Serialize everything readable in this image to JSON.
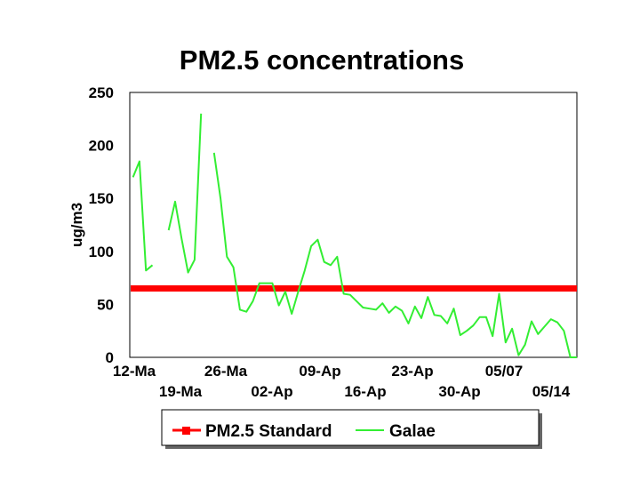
{
  "chart_data": {
    "type": "line",
    "title": "PM2.5 concentrations",
    "xlabel": "",
    "ylabel": "ug/m3",
    "ylim": [
      0,
      250
    ],
    "yticks": [
      0,
      50,
      100,
      150,
      200,
      250
    ],
    "x_tick_labels_row1": [
      "12-Ma",
      "26-Ma",
      "09-Ap",
      "23-Ap",
      "05/07"
    ],
    "x_tick_labels_row2": [
      "19-Ma",
      "02-Ap",
      "16-Ap",
      "30-Ap",
      "05/14"
    ],
    "x_range_days": [
      0,
      69
    ],
    "grid": false,
    "legend_position": "bottom",
    "series": [
      {
        "name": "PM2.5 Standard",
        "color": "#ff0000",
        "kind": "constant",
        "value": 65
      },
      {
        "name": "Galae",
        "color": "#33ee33",
        "kind": "line",
        "segments": [
          {
            "x": [
              0.5,
              1.5,
              2.5,
              3.5
            ],
            "y": [
              170,
              185,
              82,
              87
            ]
          },
          {
            "x": [
              6,
              7,
              8,
              9,
              10,
              11
            ],
            "y": [
              120,
              147,
              112,
              80,
              92,
              230
            ]
          },
          {
            "x": [
              13,
              14,
              15,
              16,
              17,
              18,
              19,
              20,
              21,
              22,
              23,
              24,
              25,
              26,
              27,
              28,
              29,
              30,
              31,
              32,
              33,
              34,
              35,
              36,
              37,
              38,
              39,
              40,
              41,
              42,
              43,
              44,
              45,
              46,
              47,
              48,
              49,
              50,
              51,
              52,
              53,
              54,
              55,
              56,
              57,
              58,
              59,
              60,
              61,
              62,
              63,
              64,
              65,
              66,
              67,
              68,
              69
            ],
            "y": [
              193,
              150,
              95,
              85,
              45,
              43,
              53,
              70,
              70,
              70,
              49,
              62,
              41,
              62,
              82,
              105,
              111,
              90,
              87,
              95,
              60,
              59,
              53,
              47,
              46,
              45,
              51,
              42,
              48,
              44,
              32,
              48,
              37,
              57,
              40,
              39,
              32,
              46,
              21,
              25,
              30,
              38,
              38,
              20,
              60,
              14,
              27,
              2,
              12,
              34,
              22,
              29,
              36,
              33,
              25,
              0,
              0
            ]
          }
        ]
      }
    ]
  }
}
